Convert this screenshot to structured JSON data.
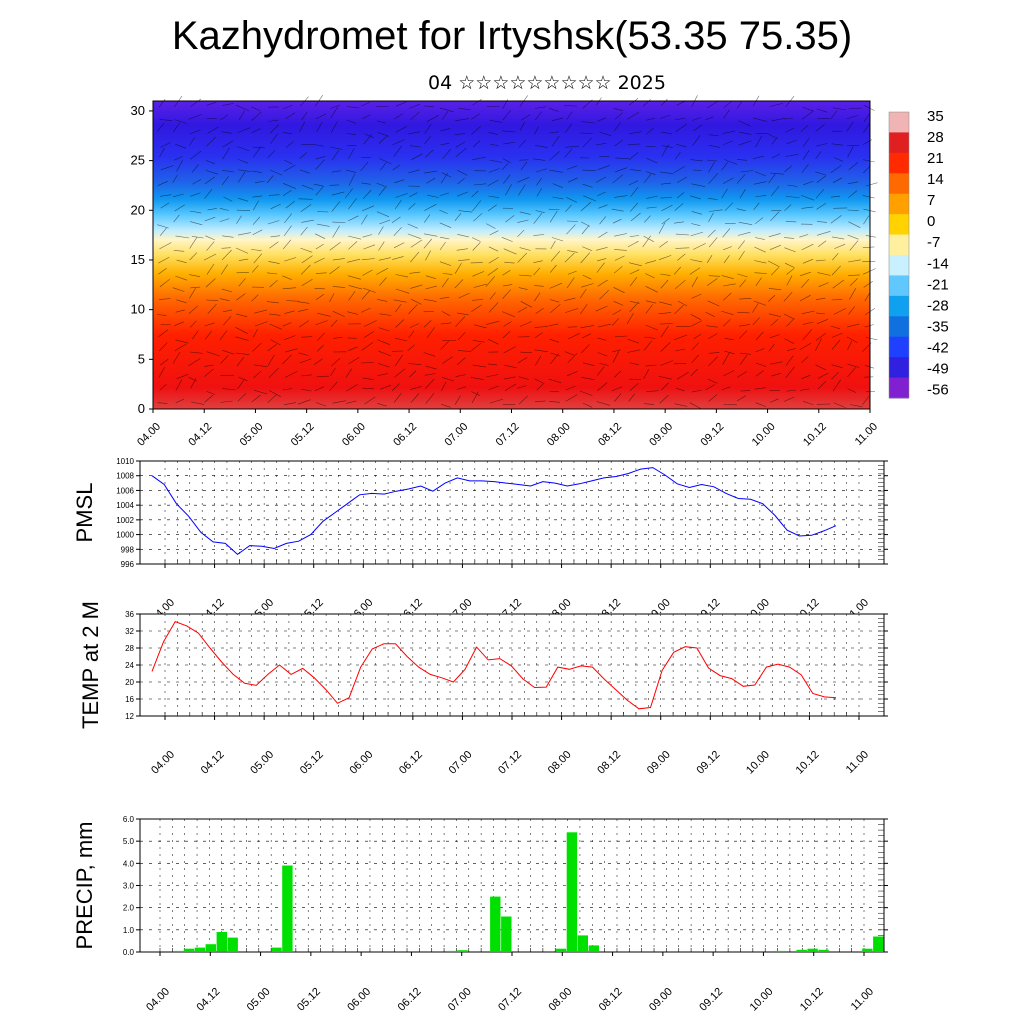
{
  "title": "Kazhydromet for Irtyshsk(53.35 75.35)",
  "subtitle": "04 ☆☆☆☆☆☆☆☆☆ 2025",
  "x_ticks": [
    "04.00",
    "04.12",
    "05.00",
    "05.12",
    "06.00",
    "06.12",
    "07.00",
    "07.12",
    "08.00",
    "08.12",
    "09.00",
    "09.12",
    "10.00",
    "10.12",
    "11.00"
  ],
  "chart_data": [
    {
      "type": "heatmap",
      "yticks": [
        "0",
        "5",
        "10",
        "15",
        "20",
        "25",
        "30"
      ],
      "ylim": [
        0,
        31
      ],
      "colorbar": {
        "labels": [
          "35",
          "28",
          "21",
          "14",
          "7",
          "0",
          "-7",
          "-14",
          "-21",
          "-28",
          "-35",
          "-42",
          "-49",
          "-56"
        ],
        "colors": [
          "#f0b4b4",
          "#e02020",
          "#ff2a00",
          "#ff6a00",
          "#ffa000",
          "#ffd200",
          "#fff0a0",
          "#c8f0ff",
          "#60c8ff",
          "#10a0f0",
          "#1070e0",
          "#2040ff",
          "#3020e0",
          "#8020d0"
        ]
      }
    },
    {
      "type": "line",
      "ylabel": "PMSL",
      "yticks": [
        "1010",
        "1008",
        "1006",
        "1004",
        "1002",
        "1000",
        "998",
        "996"
      ],
      "ylim": [
        996,
        1010
      ],
      "color": "#0000ff",
      "values": [
        1008.0,
        1006.8,
        1004.2,
        1002.5,
        1000.3,
        999.0,
        998.8,
        997.3,
        998.5,
        998.4,
        998.1,
        998.8,
        999.1,
        1000.0,
        1001.8,
        1003.0,
        1004.2,
        1005.4,
        1005.6,
        1005.5,
        1005.9,
        1006.2,
        1006.6,
        1005.9,
        1007.0,
        1007.7,
        1007.3,
        1007.3,
        1007.2,
        1007.0,
        1006.8,
        1006.6,
        1007.2,
        1007.0,
        1006.6,
        1006.9,
        1007.3,
        1007.7,
        1007.9,
        1008.3,
        1008.9,
        1009.1,
        1008.1,
        1006.9,
        1006.4,
        1006.8,
        1006.5,
        1005.6,
        1004.9,
        1004.8,
        1004.2,
        1002.6,
        1000.6,
        999.8,
        999.9,
        1000.5,
        1001.2
      ]
    },
    {
      "type": "line",
      "ylabel": "TEMP at 2 M",
      "yticks": [
        "36",
        "32",
        "28",
        "24",
        "20",
        "16",
        "12"
      ],
      "ylim": [
        12,
        36
      ],
      "color": "#ff0000",
      "values": [
        22.5,
        29.5,
        34.2,
        33.2,
        31.5,
        28.0,
        24.7,
        21.8,
        19.7,
        19.2,
        21.8,
        24.0,
        21.8,
        23.2,
        21.0,
        18.2,
        15.0,
        16.3,
        23.5,
        27.8,
        29.0,
        29.0,
        26.0,
        23.5,
        21.8,
        21.0,
        20.0,
        23.0,
        28.2,
        25.2,
        25.5,
        23.8,
        20.7,
        18.7,
        18.8,
        23.5,
        23.0,
        23.8,
        23.5,
        20.7,
        18.2,
        15.7,
        13.7,
        14.0,
        22.7,
        27.0,
        28.3,
        28.0,
        23.3,
        21.5,
        20.8,
        19.0,
        19.3,
        23.5,
        24.2,
        23.5,
        21.7,
        17.3,
        16.5,
        16.3
      ]
    },
    {
      "type": "bar",
      "ylabel": "PRECIP, mm",
      "yticks": [
        "6.0",
        "5.0",
        "4.0",
        "3.0",
        "2.0",
        "1.0",
        "0.0"
      ],
      "ylim": [
        0,
        6
      ],
      "color": "#00e000",
      "values": [
        0,
        0,
        0,
        0.05,
        0.15,
        0.2,
        0.35,
        0.9,
        0.65,
        0,
        0,
        0,
        0.2,
        3.9,
        0,
        0,
        0,
        0,
        0,
        0,
        0,
        0,
        0,
        0,
        0,
        0,
        0,
        0,
        0.05,
        0.08,
        0,
        0,
        2.5,
        1.6,
        0,
        0,
        0,
        0,
        0.15,
        5.4,
        0.75,
        0.3,
        0,
        0,
        0,
        0,
        0,
        0,
        0,
        0,
        0,
        0,
        0,
        0,
        0,
        0,
        0,
        0,
        0.05,
        0,
        0.1,
        0.15,
        0.1,
        0,
        0,
        0,
        0.15,
        0.7
      ]
    }
  ]
}
